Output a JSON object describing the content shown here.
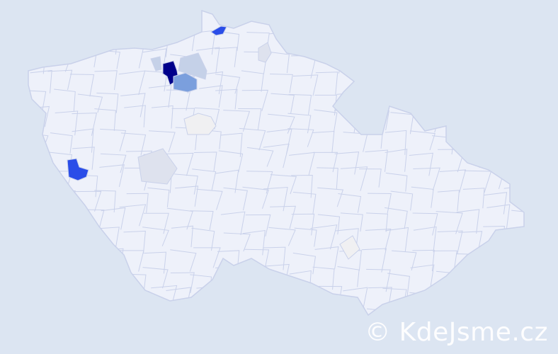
{
  "colors": {
    "background": "#dce5f2",
    "land": "#eef1fa",
    "border": "#c9d1ea",
    "level_max": "#00008b",
    "level_high": "#2a4de8",
    "level_mid": "#7b9fdd",
    "level_low": "#c5d1e8",
    "level_min": "#dee2ee",
    "level_neutral": "#f0f0f2"
  },
  "regions": [
    {
      "level": "level_max"
    },
    {
      "level": "level_high"
    },
    {
      "level": "level_high"
    },
    {
      "level": "level_mid"
    },
    {
      "level": "level_low"
    },
    {
      "level": "level_low"
    },
    {
      "level": "level_neutral"
    },
    {
      "level": "level_min"
    },
    {
      "level": "level_min"
    },
    {
      "level": "level_neutral"
    }
  ],
  "watermark": "© KdeJsme.cz"
}
